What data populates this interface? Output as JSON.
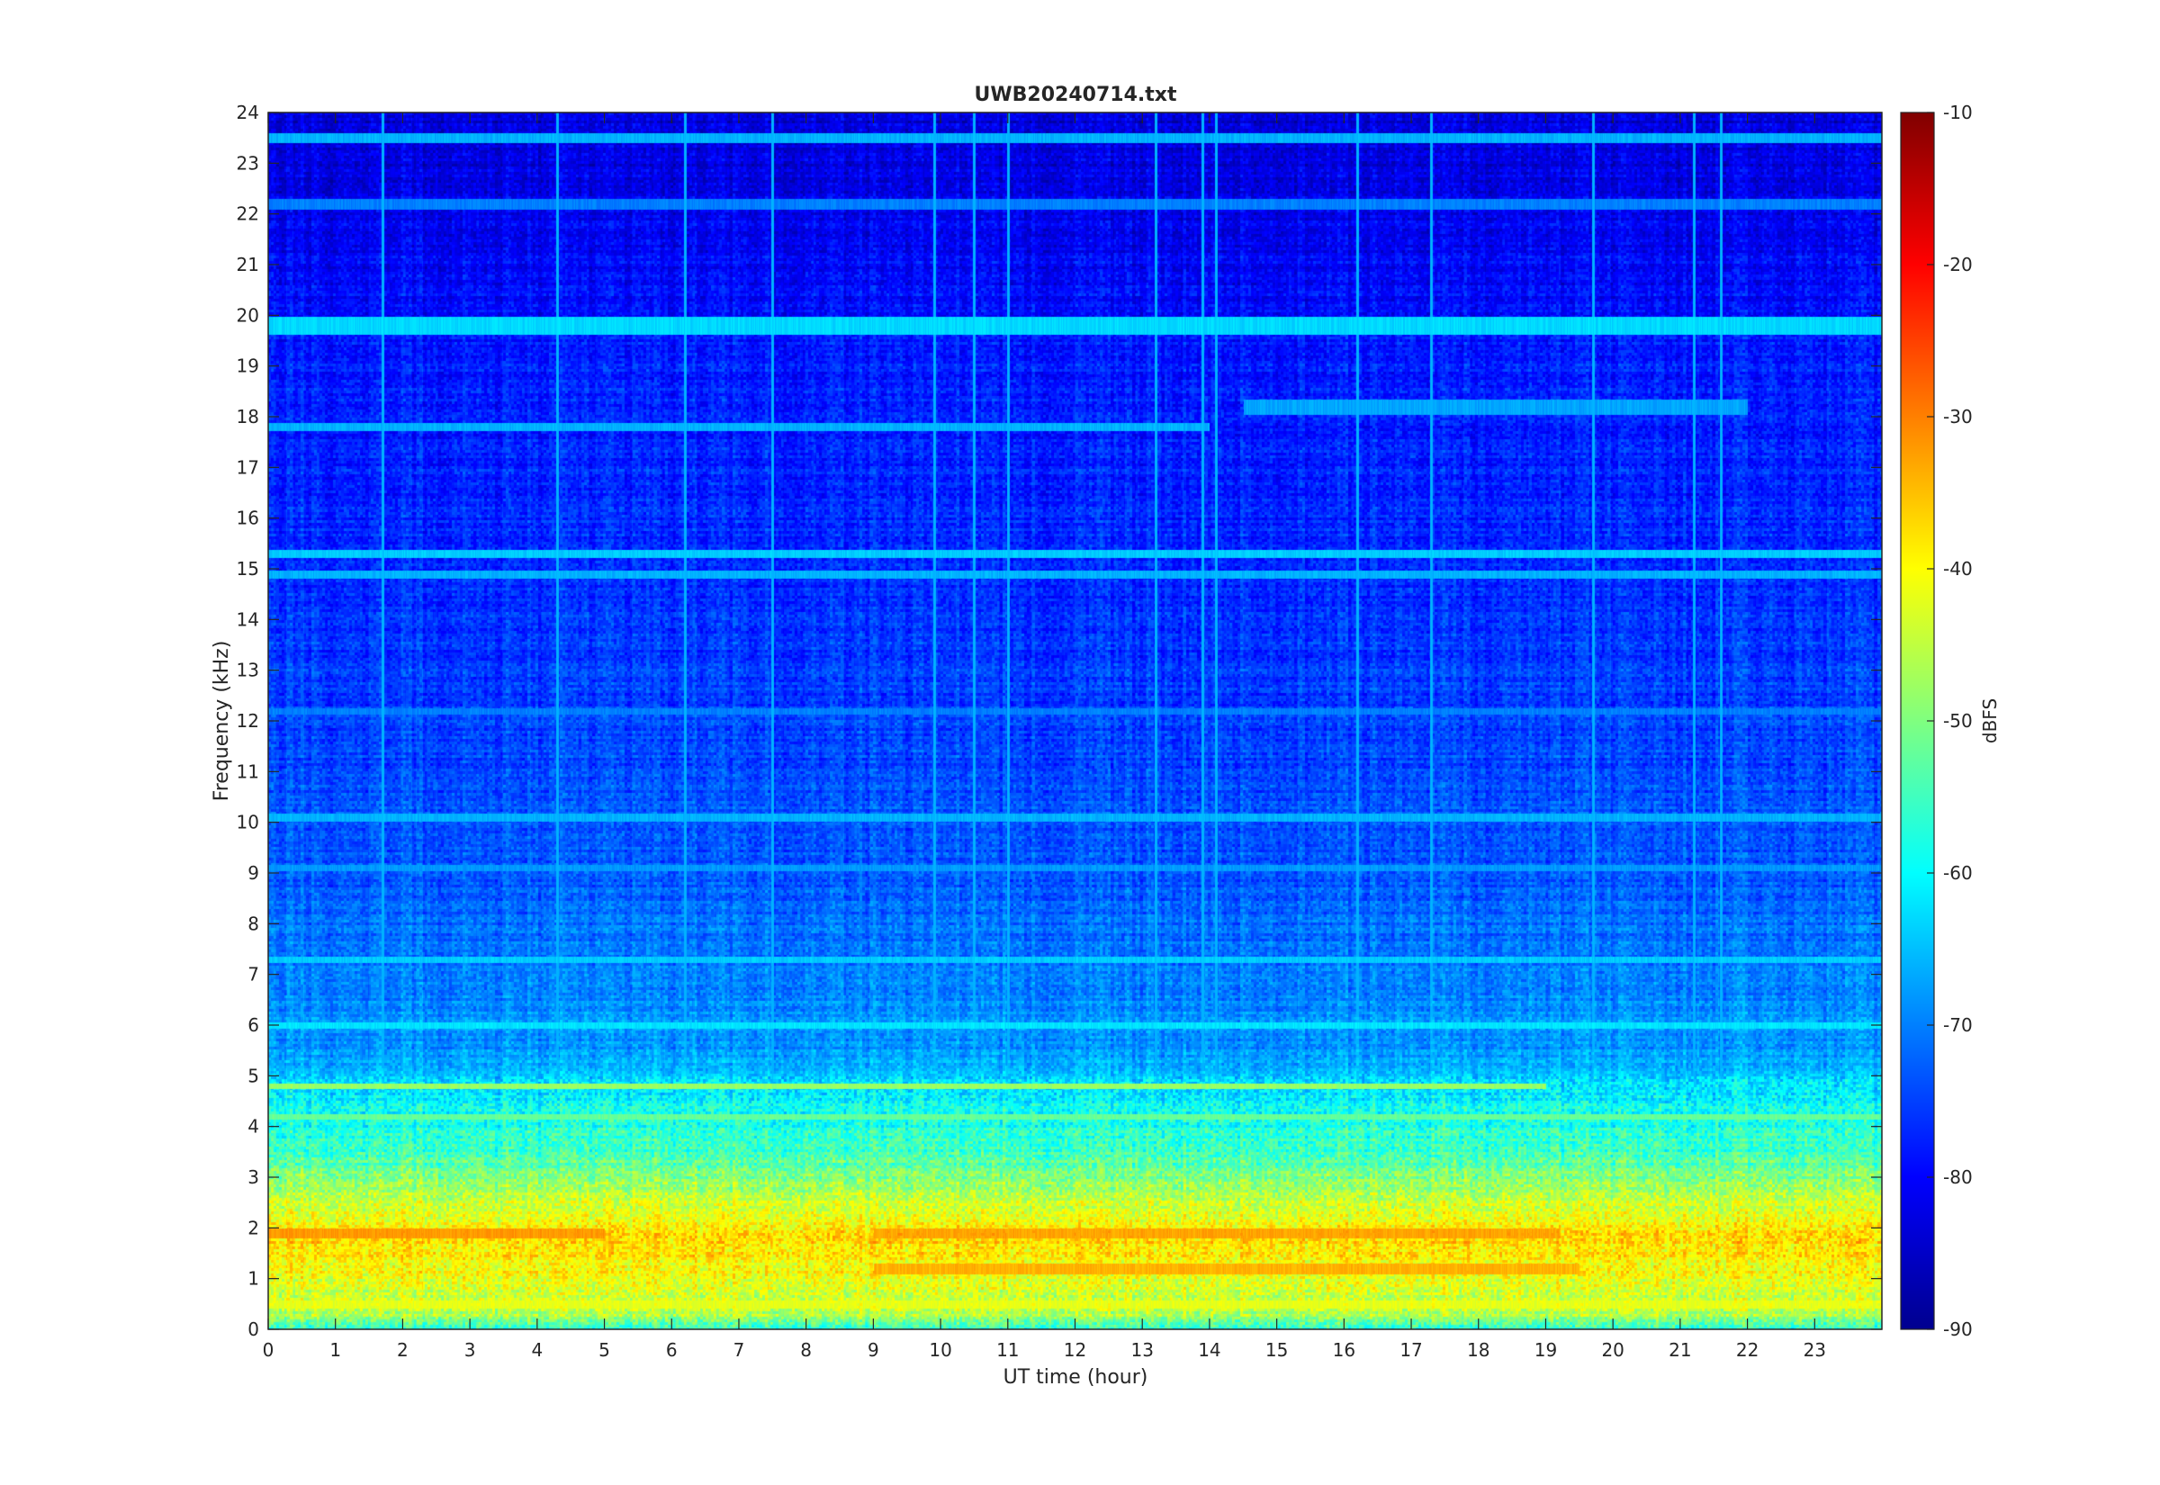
{
  "chart_data": {
    "type": "heatmap",
    "title": "UWB20240714.txt",
    "xlabel": "UT time (hour)",
    "ylabel": "Frequency (kHz)",
    "xlim": [
      0,
      24
    ],
    "ylim": [
      0,
      24
    ],
    "x_ticks": [
      0,
      1,
      2,
      3,
      4,
      5,
      6,
      7,
      8,
      9,
      10,
      11,
      12,
      13,
      14,
      15,
      16,
      17,
      18,
      19,
      20,
      21,
      22,
      23
    ],
    "y_ticks": [
      0,
      1,
      2,
      3,
      4,
      5,
      6,
      7,
      8,
      9,
      10,
      11,
      12,
      13,
      14,
      15,
      16,
      17,
      18,
      19,
      20,
      21,
      22,
      23,
      24
    ],
    "colorbar": {
      "label": "dBFS",
      "colormap": "jet",
      "clim": [
        -90,
        -10
      ],
      "ticks": [
        -10,
        -20,
        -30,
        -40,
        -50,
        -60,
        -70,
        -80,
        -90
      ]
    },
    "level_profile_dbfs": [
      {
        "freq_khz": 0.0,
        "level": -58
      },
      {
        "freq_khz": 0.3,
        "level": -46
      },
      {
        "freq_khz": 0.7,
        "level": -44
      },
      {
        "freq_khz": 1.2,
        "level": -40
      },
      {
        "freq_khz": 1.9,
        "level": -37
      },
      {
        "freq_khz": 2.5,
        "level": -44
      },
      {
        "freq_khz": 3.0,
        "level": -50
      },
      {
        "freq_khz": 3.5,
        "level": -55
      },
      {
        "freq_khz": 4.0,
        "level": -58
      },
      {
        "freq_khz": 4.8,
        "level": -62
      },
      {
        "freq_khz": 5.5,
        "level": -68
      },
      {
        "freq_khz": 7.0,
        "level": -70
      },
      {
        "freq_khz": 9.0,
        "level": -73
      },
      {
        "freq_khz": 12.0,
        "level": -75
      },
      {
        "freq_khz": 16.0,
        "level": -77
      },
      {
        "freq_khz": 19.0,
        "level": -78
      },
      {
        "freq_khz": 21.0,
        "level": -80
      },
      {
        "freq_khz": 22.5,
        "level": -82
      },
      {
        "freq_khz": 24.0,
        "level": -83
      }
    ],
    "tone_lines": [
      {
        "freq_khz": 19.8,
        "level": -63,
        "t_start": 0,
        "t_end": 24,
        "width_khz": 0.18
      },
      {
        "freq_khz": 18.2,
        "level": -67,
        "t_start": 14.5,
        "t_end": 22,
        "width_khz": 0.15
      },
      {
        "freq_khz": 17.8,
        "level": -66,
        "t_start": 0,
        "t_end": 14,
        "width_khz": 0.08
      },
      {
        "freq_khz": 23.5,
        "level": -66,
        "t_start": 0,
        "t_end": 24,
        "width_khz": 0.1
      },
      {
        "freq_khz": 22.2,
        "level": -70,
        "t_start": 0,
        "t_end": 24,
        "width_khz": 0.1
      },
      {
        "freq_khz": 15.3,
        "level": -64,
        "t_start": 0,
        "t_end": 24,
        "width_khz": 0.08
      },
      {
        "freq_khz": 14.9,
        "level": -66,
        "t_start": 0,
        "t_end": 24,
        "width_khz": 0.08
      },
      {
        "freq_khz": 12.2,
        "level": -70,
        "t_start": 0,
        "t_end": 24,
        "width_khz": 0.06
      },
      {
        "freq_khz": 10.1,
        "level": -66,
        "t_start": 0,
        "t_end": 24,
        "width_khz": 0.08
      },
      {
        "freq_khz": 9.1,
        "level": -68,
        "t_start": 0,
        "t_end": 24,
        "width_khz": 0.06
      },
      {
        "freq_khz": 7.3,
        "level": -64,
        "t_start": 0,
        "t_end": 24,
        "width_khz": 0.06
      },
      {
        "freq_khz": 6.0,
        "level": -62,
        "t_start": 0,
        "t_end": 24,
        "width_khz": 0.06
      },
      {
        "freq_khz": 4.8,
        "level": -48,
        "t_start": 0,
        "t_end": 19,
        "width_khz": 0.06
      },
      {
        "freq_khz": 4.2,
        "level": -52,
        "t_start": 0,
        "t_end": 24,
        "width_khz": 0.06
      },
      {
        "freq_khz": 1.9,
        "level": -32,
        "t_start": 0,
        "t_end": 5,
        "width_khz": 0.1
      },
      {
        "freq_khz": 1.9,
        "level": -33,
        "t_start": 9,
        "t_end": 19.2,
        "width_khz": 0.1
      },
      {
        "freq_khz": 1.2,
        "level": -34,
        "t_start": 9,
        "t_end": 19.5,
        "width_khz": 0.1
      },
      {
        "freq_khz": 0.5,
        "level": -42,
        "t_start": 0,
        "t_end": 24,
        "width_khz": 0.08
      }
    ],
    "vertical_streaks_hour": [
      1.7,
      4.3,
      6.2,
      7.5,
      9.9,
      10.5,
      11.0,
      13.2,
      13.9,
      14.1,
      16.2,
      17.3,
      19.7,
      21.2,
      21.6
    ]
  }
}
